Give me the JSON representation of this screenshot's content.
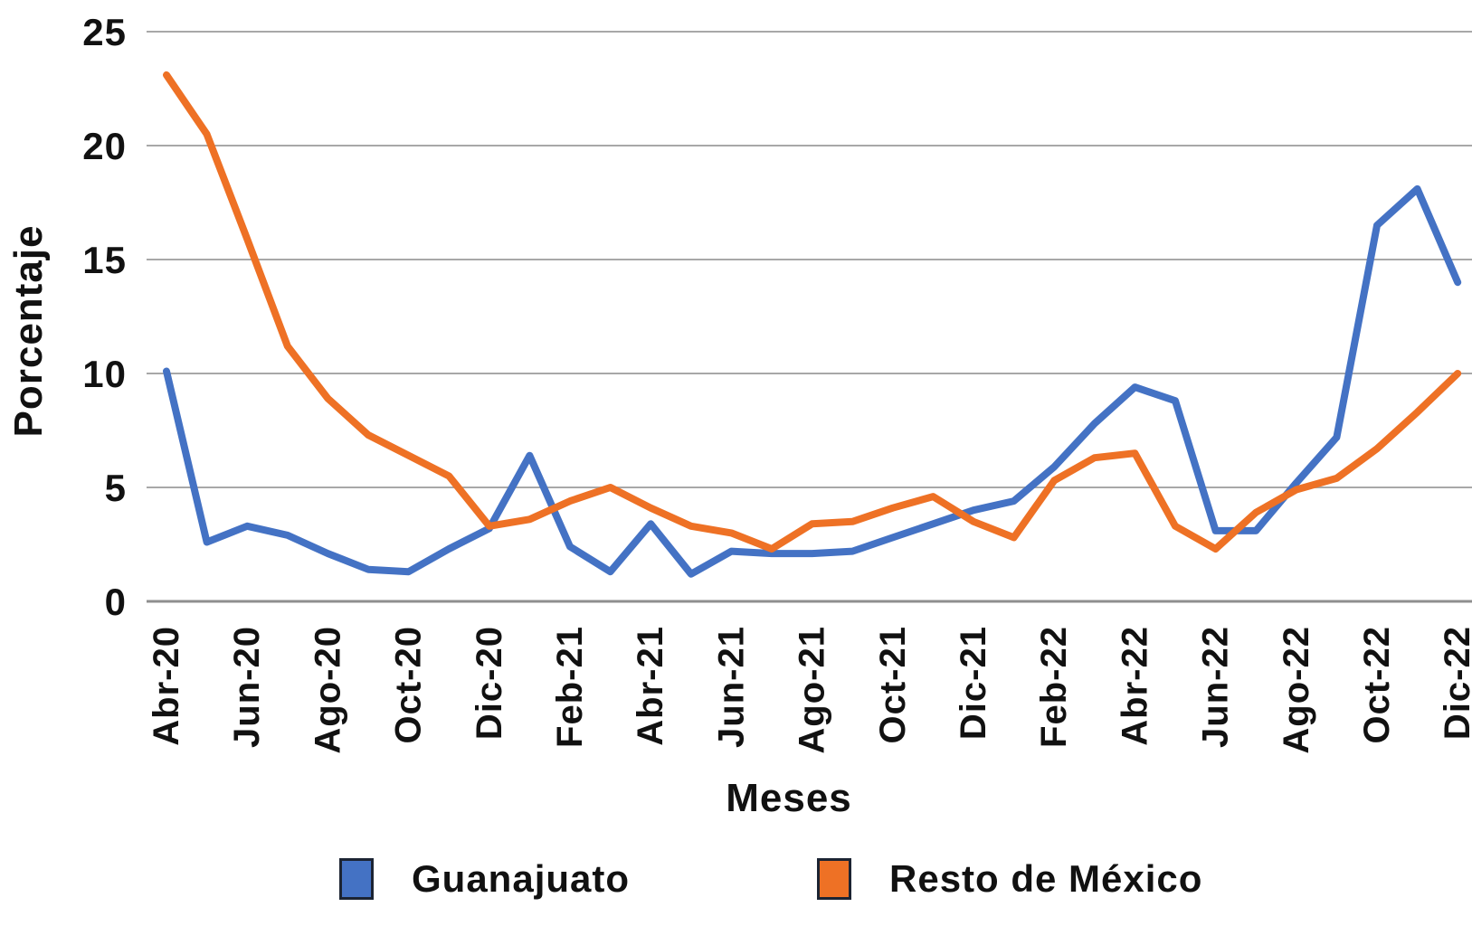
{
  "chart_data": {
    "type": "line",
    "title": "",
    "xlabel": "Meses",
    "ylabel": "Porcentaje",
    "x": [
      "Abr-20",
      "May-20",
      "Jun-20",
      "Jul-20",
      "Ago-20",
      "Sep-20",
      "Oct-20",
      "Nov-20",
      "Dic-20",
      "Ene-21",
      "Feb-21",
      "Mar-21",
      "Abr-21",
      "May-21",
      "Jun-21",
      "Jul-21",
      "Ago-21",
      "Sep-21",
      "Oct-21",
      "Nov-21",
      "Dic-21",
      "Ene-22",
      "Feb-22",
      "Mar-22",
      "Abr-22",
      "May-22",
      "Jun-22",
      "Jul-22",
      "Ago-22",
      "Sep-22",
      "Oct-22",
      "Nov-22",
      "Dic-22"
    ],
    "tick_every": 2,
    "x_tick_labels": [
      "Abr-20",
      "Jun-20",
      "Ago-20",
      "Oct-20",
      "Dic-20",
      "Feb-21",
      "Abr-21",
      "Jun-21",
      "Ago-21",
      "Oct-21",
      "Dic-21",
      "Feb-22",
      "Abr-22",
      "Jun-22",
      "Ago-22",
      "Oct-22",
      "Dic-22"
    ],
    "yticks": [
      0,
      5,
      10,
      15,
      20,
      25
    ],
    "ylim": [
      0,
      25
    ],
    "grid": "horizontal",
    "grid_color": "#a8a8a8",
    "axis_color": "#8f8f8f",
    "text_color": "#111111",
    "legend_position": "bottom",
    "series": [
      {
        "name": "Guanajuato",
        "color": "#4472C4",
        "values": [
          10.1,
          2.6,
          3.3,
          2.9,
          2.1,
          1.4,
          1.3,
          2.3,
          3.2,
          6.4,
          2.4,
          1.3,
          3.4,
          1.2,
          2.2,
          2.1,
          2.1,
          2.2,
          2.8,
          3.4,
          4.0,
          4.4,
          5.9,
          7.8,
          9.4,
          8.8,
          3.1,
          3.1,
          5.2,
          7.2,
          16.5,
          18.1,
          14.0
        ]
      },
      {
        "name": "Resto de México",
        "color": "#EE7125",
        "values": [
          23.1,
          20.5,
          15.9,
          11.2,
          8.9,
          7.3,
          6.4,
          5.5,
          3.3,
          3.6,
          4.4,
          5.0,
          4.1,
          3.3,
          3.0,
          2.3,
          3.4,
          3.5,
          4.1,
          4.6,
          3.5,
          2.8,
          5.3,
          6.3,
          6.5,
          3.3,
          2.3,
          3.9,
          4.9,
          5.4,
          6.7,
          8.3,
          10.0
        ]
      }
    ]
  }
}
